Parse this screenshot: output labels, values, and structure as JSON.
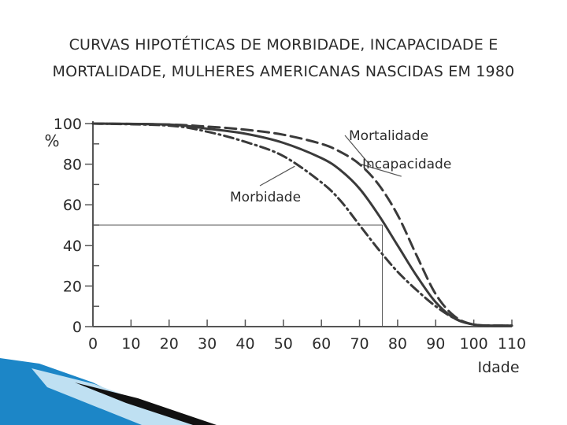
{
  "slide": {
    "title_line1": "CURVAS HIPOTÉTICAS DE MORBIDADE, INCAPACIDADE E",
    "title_line2": "MORTALIDADE, MULHERES AMERICANAS NASCIDAS EM 1980"
  },
  "chart_data": {
    "type": "line",
    "title": "CURVAS HIPOTÉTICAS DE MORBIDADE, INCAPACIDADE E MORTALIDADE, MULHERES AMERICANAS NASCIDAS EM 1980",
    "xlabel": "Idade",
    "ylabel": "%",
    "xlim": [
      0,
      110
    ],
    "ylim": [
      0,
      100
    ],
    "xticks": [
      0,
      10,
      20,
      30,
      40,
      50,
      60,
      70,
      80,
      90,
      100,
      110
    ],
    "yticks": [
      0,
      20,
      40,
      60,
      80,
      100
    ],
    "grid": false,
    "series": [
      {
        "name": "Mortalidade",
        "style": "dashed",
        "x": [
          0,
          20,
          30,
          40,
          50,
          60,
          65,
          70,
          75,
          80,
          85,
          90,
          95,
          100,
          105,
          110
        ],
        "y": [
          100,
          99.5,
          98.5,
          97,
          94.5,
          90,
          86,
          80,
          70,
          55,
          35,
          16,
          5,
          1,
          0.5,
          0.5
        ]
      },
      {
        "name": "Incapacidade",
        "style": "solid",
        "x": [
          0,
          20,
          30,
          40,
          50,
          60,
          65,
          70,
          75,
          80,
          85,
          90,
          95,
          100,
          105,
          110
        ],
        "y": [
          100,
          99.5,
          97.5,
          95,
          90.5,
          83,
          77,
          68,
          55,
          40,
          25,
          12,
          4,
          1,
          0.5,
          0.5
        ]
      },
      {
        "name": "Morbidade",
        "style": "dashdot",
        "x": [
          0,
          20,
          30,
          40,
          50,
          60,
          65,
          70,
          75,
          80,
          85,
          90,
          95,
          100,
          105,
          110
        ],
        "y": [
          100,
          99,
          96,
          91,
          84,
          71,
          62,
          50,
          38,
          27,
          18,
          10,
          4,
          1,
          0.5,
          0.5
        ]
      }
    ],
    "reference": {
      "y": 50,
      "x": 76
    },
    "annotations": [
      {
        "series": "Mortalidade",
        "text": "Mortalidade",
        "point": [
          73,
          79
        ]
      },
      {
        "series": "Incapacidade",
        "text": "Incapacidade",
        "point": [
          81,
          74
        ]
      },
      {
        "series": "Morbidade",
        "text": "Morbidade",
        "point": [
          53,
          79
        ]
      }
    ],
    "colors": {
      "line": "#3a3a3a",
      "axis": "#555555",
      "text": "#2b2b2b"
    }
  },
  "decor": {
    "accent": "#1c86c7",
    "accent_light": "#bfe0f2",
    "dark": "#111111"
  }
}
